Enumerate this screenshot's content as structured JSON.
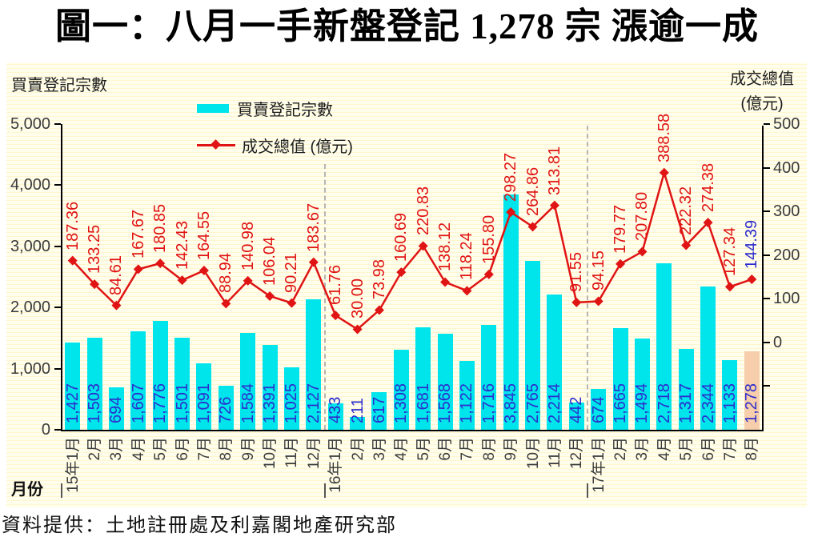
{
  "title": "圖一：八月一手新盤登記 1,278 宗  漲逾一成",
  "footer": "資料提供：土地註冊處及利嘉閣地產研究部",
  "left_axis": {
    "title": "買賣登記宗數",
    "min": 0,
    "max": 5000,
    "step": 1000
  },
  "right_axis": {
    "title_line1": "成交總值",
    "title_line2": "(億元)",
    "min": -200,
    "max": 500,
    "step": 100,
    "label_min": 0
  },
  "x_axis": {
    "title": "月份"
  },
  "legend": [
    {
      "label": "買賣登記宗數",
      "type": "bar"
    },
    {
      "label": "成交總值 (億元)",
      "type": "line"
    }
  ],
  "colors": {
    "bar": "#00E4EB",
    "bar_highlight": "#F6CEAB",
    "line": "#E01414",
    "bar_value_label": "#2D2DCD",
    "line_value_label": "#E01414",
    "line_value_label_highlight": "#2D2DCD",
    "axis": "#000000",
    "tick_label": "#3A3A3A",
    "separator": "#B5B5B5",
    "year_tick": "#555555"
  },
  "chart_data": {
    "type": "bar+line",
    "categories": [
      "15年1月",
      "2月",
      "3月",
      "4月",
      "5月",
      "6月",
      "7月",
      "8月",
      "9月",
      "10月",
      "11月",
      "12月",
      "16年1月",
      "2月",
      "3月",
      "4月",
      "5月",
      "6月",
      "7月",
      "8月",
      "9月",
      "10月",
      "11月",
      "12月",
      "17年1月",
      "2月",
      "3月",
      "4月",
      "5月",
      "6月",
      "7月",
      "8月"
    ],
    "series": [
      {
        "name": "買賣登記宗數",
        "type": "bar",
        "axis": "left",
        "values": [
          1427,
          1503,
          694,
          1607,
          1776,
          1501,
          1091,
          726,
          1584,
          1391,
          1025,
          2127,
          433,
          211,
          617,
          1308,
          1681,
          1568,
          1122,
          1716,
          3845,
          2765,
          2214,
          442,
          674,
          1665,
          1494,
          2718,
          1317,
          2344,
          1133,
          1278
        ]
      },
      {
        "name": "成交總值 (億元)",
        "type": "line",
        "axis": "right",
        "values": [
          187.36,
          133.25,
          84.61,
          167.67,
          180.85,
          142.43,
          164.55,
          88.94,
          140.98,
          106.04,
          90.21,
          183.67,
          61.76,
          30.0,
          73.98,
          160.69,
          220.83,
          138.12,
          118.24,
          155.8,
          298.27,
          264.86,
          313.81,
          91.55,
          94.15,
          179.77,
          207.8,
          388.58,
          222.32,
          274.38,
          127.34,
          144.39
        ]
      }
    ],
    "highlight_index": 31,
    "year_separator_indices": [
      12,
      24
    ],
    "left_ylim": [
      0,
      5000
    ],
    "right_ylim": [
      -200,
      500
    ],
    "grid": false,
    "legend_position": "top-left-inside"
  }
}
